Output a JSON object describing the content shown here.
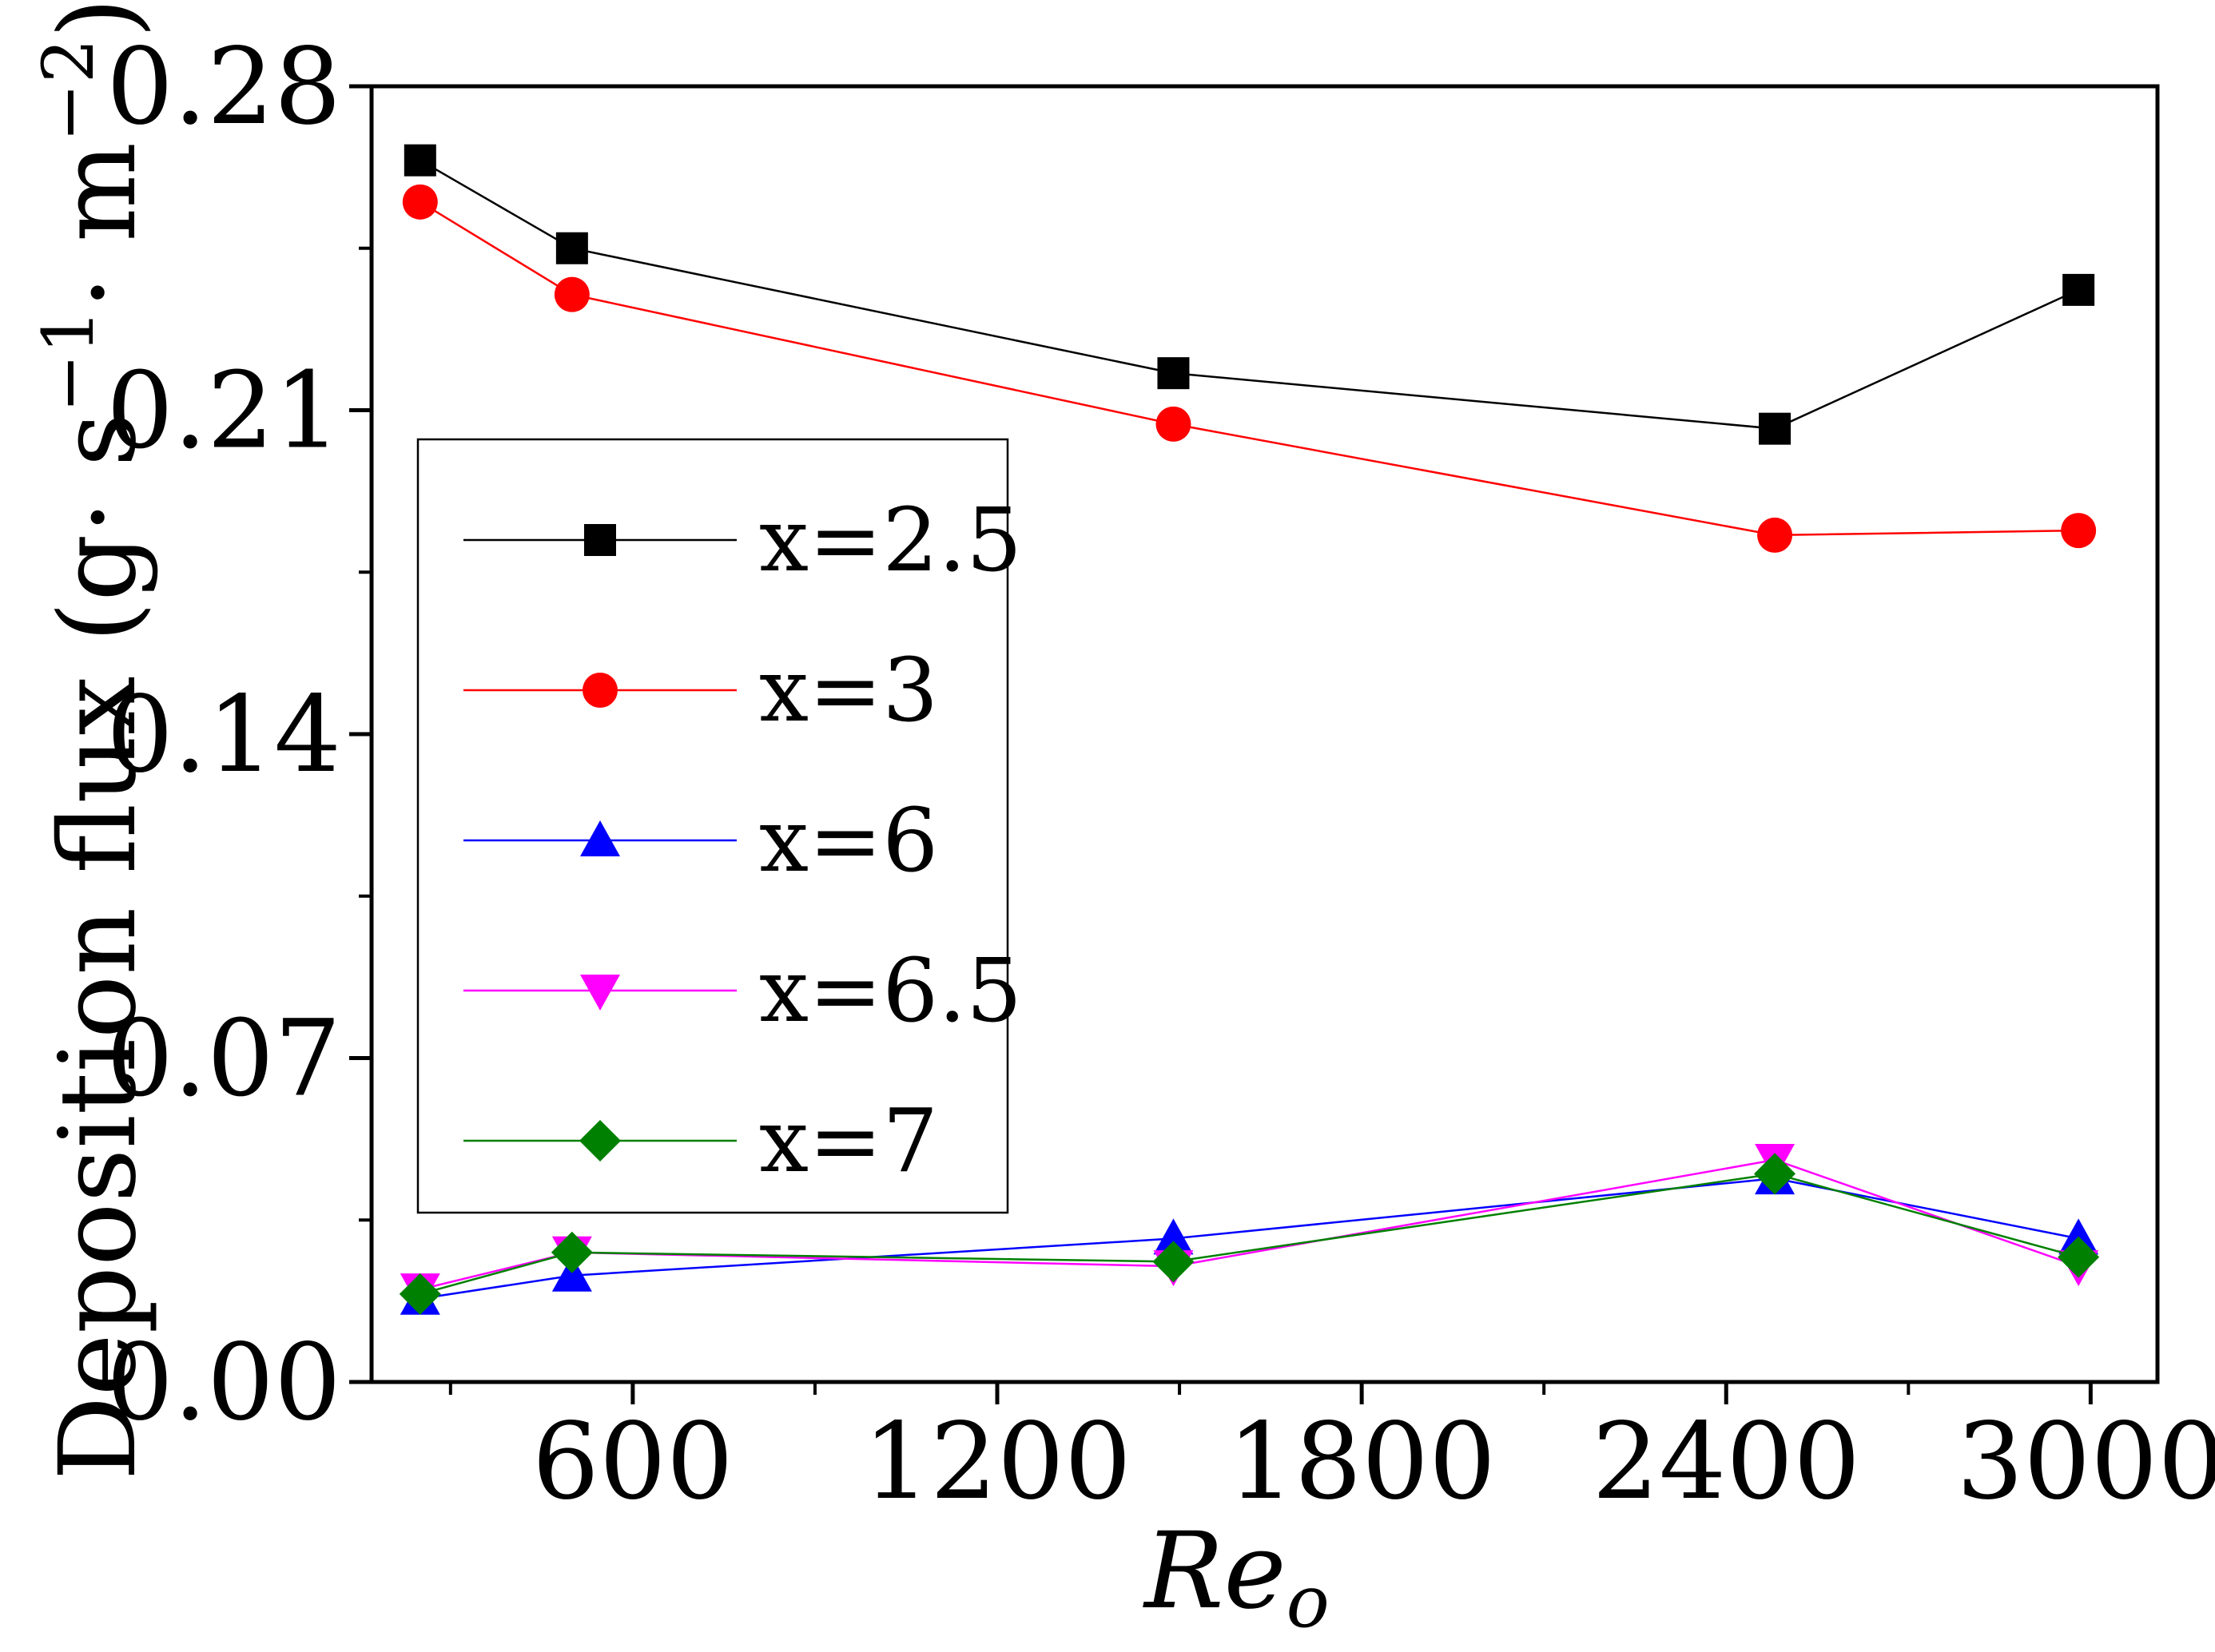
{
  "chart_data": {
    "type": "line",
    "title": "",
    "xlabel": "Re_o",
    "xlabel_main": "Re",
    "xlabel_sub": "o",
    "ylabel": "Deposition flux (g· s⁻¹· m⁻²)",
    "ylabel_main": "Deposition flux (g· s",
    "ylabel_sup1": "−1",
    "ylabel_mid": "· m",
    "ylabel_sup2": "−2",
    "ylabel_end": ")",
    "xlim": [
      170,
      3110
    ],
    "ylim": [
      0.0,
      0.28
    ],
    "x_ticks": [
      600,
      1200,
      1800,
      2400,
      3000
    ],
    "x_tick_labels": [
      "600",
      "1200",
      "1800",
      "2400",
      "3000"
    ],
    "x_minor_ticks": [
      300,
      900,
      1500,
      2100,
      2700
    ],
    "y_ticks": [
      0.0,
      0.07,
      0.14,
      0.21,
      0.28
    ],
    "y_tick_labels": [
      "0.00",
      "0.07",
      "0.14",
      "0.21",
      "0.28"
    ],
    "legend_position": "center-left",
    "x": [
      250,
      500,
      1490,
      2480,
      2980
    ],
    "series": [
      {
        "name": "x=2.5",
        "color": "#000000",
        "marker": "square",
        "values": [
          0.264,
          0.245,
          0.218,
          0.206,
          0.236
        ]
      },
      {
        "name": "x=3",
        "color": "#ff0000",
        "marker": "circle",
        "values": [
          0.255,
          0.235,
          0.207,
          0.183,
          0.184
        ]
      },
      {
        "name": "x=6",
        "color": "#0000ff",
        "marker": "triangle-up",
        "values": [
          0.018,
          0.023,
          0.031,
          0.044,
          0.031
        ]
      },
      {
        "name": "x=6.5",
        "color": "#ff00ff",
        "marker": "triangle-down",
        "values": [
          0.02,
          0.028,
          0.025,
          0.048,
          0.025
        ]
      },
      {
        "name": "x=7",
        "color": "#008000",
        "marker": "diamond",
        "values": [
          0.019,
          0.028,
          0.026,
          0.045,
          0.027
        ]
      }
    ]
  }
}
